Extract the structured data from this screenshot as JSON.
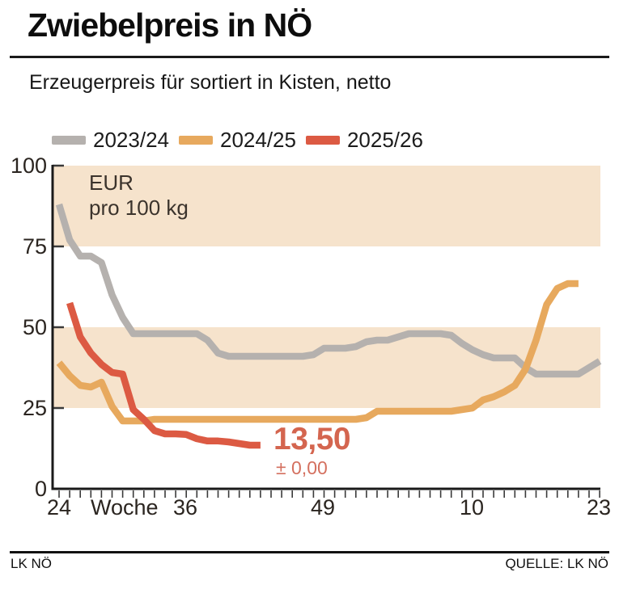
{
  "header": {
    "title": "Zwiebelpreis in NÖ",
    "subtitle": "Erzeugerpreis für sortiert in Kisten, netto"
  },
  "legend": [
    {
      "label": "2023/24",
      "color": "#b5b1ae"
    },
    {
      "label": "2024/25",
      "color": "#e7a95e"
    },
    {
      "label": "2025/26",
      "color": "#dc5a43"
    }
  ],
  "chart_data": {
    "type": "line",
    "title": "Zwiebelpreis in NÖ",
    "subtitle": "Erzeugerpreis für sortiert in Kisten, netto",
    "unit_label_line1": "EUR",
    "unit_label_line2": "pro 100 kg",
    "x_axis_word": "Woche",
    "ylim": [
      0,
      100
    ],
    "y_ticks": [
      0,
      25,
      50,
      75,
      100
    ],
    "y_tick_display": [
      "100",
      "75",
      "50",
      "25",
      "0"
    ],
    "x_label_display": [
      "24",
      "Woche",
      "36",
      "49",
      "10",
      "23"
    ],
    "grid": "off",
    "legend_position": "top",
    "bands": [
      [
        25,
        50
      ],
      [
        75,
        100
      ]
    ],
    "band_color": "#f6e3cc",
    "axis_color": "#1a1a1a",
    "tick_color": "#3a3a3a",
    "weeks": [
      24,
      25,
      26,
      27,
      28,
      29,
      30,
      31,
      32,
      33,
      34,
      35,
      36,
      37,
      38,
      39,
      40,
      41,
      42,
      43,
      44,
      45,
      46,
      47,
      48,
      49,
      50,
      51,
      52,
      1,
      2,
      3,
      4,
      5,
      6,
      7,
      8,
      9,
      10,
      11,
      12,
      13,
      14,
      15,
      16,
      17,
      18,
      19,
      20,
      21,
      22,
      23
    ],
    "series": [
      {
        "name": "2023/24",
        "color": "#b5b1ae",
        "values": [
          88,
          77,
          72,
          72,
          70,
          60,
          53,
          48,
          48,
          48,
          48,
          48,
          48,
          48,
          46,
          42,
          41,
          41,
          41,
          41,
          41,
          41,
          41,
          41,
          41.5,
          43.5,
          43.5,
          43.5,
          44,
          45.5,
          46,
          46,
          47,
          48,
          48,
          48,
          48,
          47.5,
          45,
          43,
          41.5,
          40.5,
          40.5,
          40.5,
          37.5,
          35.5,
          35.5,
          35.5,
          35.5,
          35.5,
          37.5,
          39.5
        ]
      },
      {
        "name": "2024/25",
        "color": "#e7a95e",
        "values": [
          39,
          35,
          32,
          31.5,
          33,
          25.5,
          21,
          21,
          21,
          21.5,
          21.5,
          21.5,
          21.5,
          21.5,
          21.5,
          21.5,
          21.5,
          21.5,
          21.5,
          21.5,
          21.5,
          21.5,
          21.5,
          21.5,
          21.5,
          21.5,
          21.5,
          21.5,
          21.5,
          22,
          24,
          24,
          24,
          24,
          24,
          24,
          24,
          24,
          24.5,
          25,
          27.5,
          28.5,
          30,
          32,
          37,
          46,
          57,
          62,
          63.5,
          63.5,
          null,
          null
        ]
      },
      {
        "name": "2025/26",
        "color": "#dc5a43",
        "values": [
          null,
          57.5,
          47,
          42,
          38.5,
          36,
          35.5,
          24.5,
          21.5,
          18,
          17,
          17,
          16.8,
          15.5,
          14.8,
          14.8,
          14.5,
          14,
          13.5,
          13.5,
          null,
          null,
          null,
          null,
          null,
          null,
          null,
          null,
          null,
          null,
          null,
          null,
          null,
          null,
          null,
          null,
          null,
          null,
          null,
          null,
          null,
          null,
          null,
          null,
          null,
          null,
          null,
          null,
          null,
          null,
          null,
          null
        ]
      }
    ],
    "annotation": {
      "value": "13,50",
      "change": "± 0,00",
      "value_color": "#d4654f",
      "change_color": "#d4705f"
    }
  },
  "footer": {
    "left": "LK NÖ",
    "right": "QUELLE: LK NÖ"
  }
}
